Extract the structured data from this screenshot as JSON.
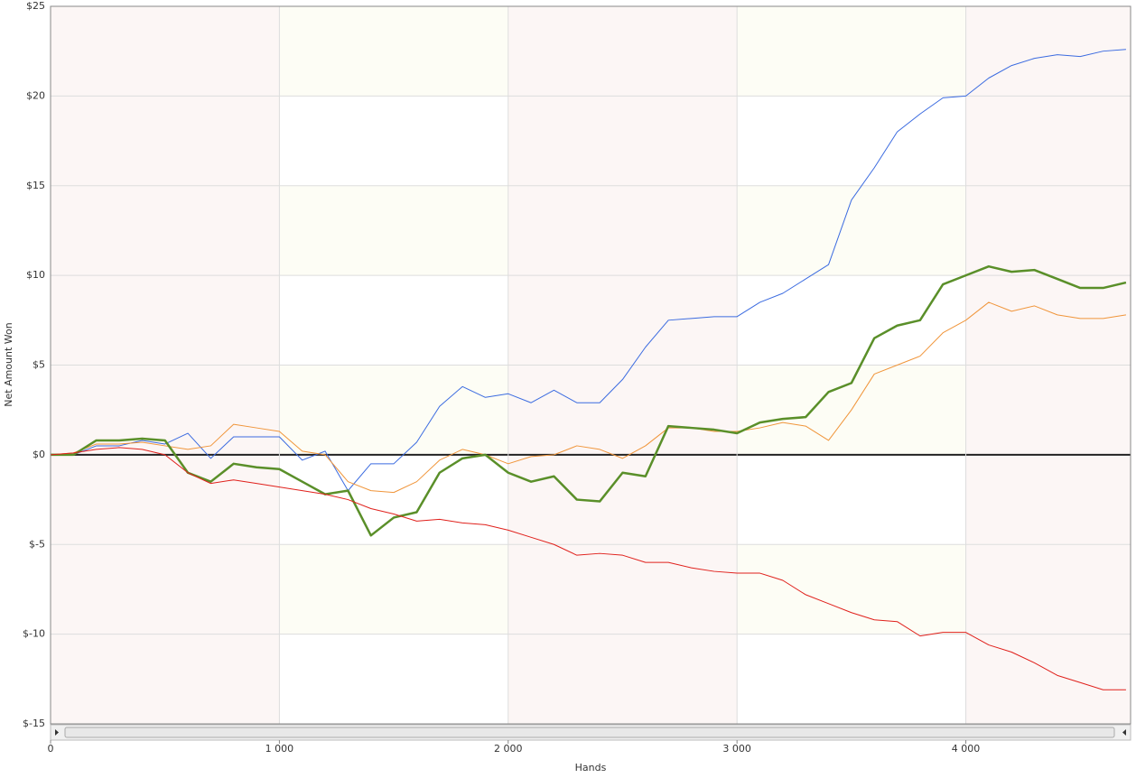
{
  "chart_data": {
    "type": "line",
    "xlabel": "Hands",
    "ylabel": "Net Amount Won",
    "x": [
      0,
      100,
      200,
      300,
      400,
      500,
      600,
      700,
      800,
      900,
      1000,
      1100,
      1200,
      1300,
      1400,
      1500,
      1600,
      1700,
      1800,
      1900,
      2000,
      2100,
      2200,
      2300,
      2400,
      2500,
      2600,
      2700,
      2800,
      2900,
      3000,
      3100,
      3200,
      3300,
      3400,
      3500,
      3600,
      3700,
      3800,
      3900,
      4000,
      4100,
      4200,
      4300,
      4400,
      4500,
      4600,
      4700
    ],
    "series": [
      {
        "color": "#3b6be0",
        "width": 1,
        "values": [
          0,
          0,
          0.5,
          0.5,
          0.8,
          0.6,
          1.2,
          -0.2,
          1.0,
          1.0,
          1.0,
          -0.3,
          0.2,
          -2.0,
          -0.5,
          -0.5,
          0.7,
          2.7,
          3.8,
          3.2,
          3.4,
          2.9,
          3.6,
          2.9,
          2.9,
          4.2,
          6.0,
          7.5,
          7.6,
          7.7,
          7.7,
          8.5,
          9.0,
          9.8,
          10.6,
          14.2,
          16.0,
          18.0,
          19.0,
          19.9,
          20.0,
          21.0,
          21.7,
          22.1,
          22.3,
          22.2,
          22.5,
          22.6
        ]
      },
      {
        "color": "#f0953a",
        "width": 1,
        "values": [
          0,
          0.1,
          0.6,
          0.6,
          0.7,
          0.5,
          0.3,
          0.5,
          1.7,
          1.5,
          1.3,
          0.2,
          0,
          -1.5,
          -2.0,
          -2.1,
          -1.5,
          -0.3,
          0.3,
          0,
          -0.5,
          -0.1,
          0,
          0.5,
          0.3,
          -0.2,
          0.5,
          1.5,
          1.5,
          1.3,
          1.3,
          1.5,
          1.8,
          1.6,
          0.8,
          2.5,
          4.5,
          5.0,
          5.5,
          6.8,
          7.5,
          8.5,
          8.0,
          8.3,
          7.8,
          7.6,
          7.6,
          7.8
        ]
      },
      {
        "color": "#5a8f29",
        "width": 2.5,
        "values": [
          0,
          0,
          0.8,
          0.8,
          0.9,
          0.8,
          -1.0,
          -1.5,
          -0.5,
          -0.7,
          -0.8,
          -1.5,
          -2.2,
          -2.0,
          -4.5,
          -3.5,
          -3.2,
          -1.0,
          -0.2,
          0,
          -1.0,
          -1.5,
          -1.2,
          -2.5,
          -2.6,
          -1.0,
          -1.2,
          1.6,
          1.5,
          1.4,
          1.2,
          1.8,
          2.0,
          2.1,
          3.5,
          4.0,
          6.5,
          7.2,
          7.5,
          9.5,
          10.0,
          10.5,
          10.2,
          10.3,
          9.8,
          9.3,
          9.3,
          9.6
        ]
      },
      {
        "color": "#e0201b",
        "width": 1,
        "values": [
          0,
          0.1,
          0.3,
          0.4,
          0.3,
          0,
          -1.0,
          -1.6,
          -1.4,
          -1.6,
          -1.8,
          -2.0,
          -2.2,
          -2.5,
          -3.0,
          -3.3,
          -3.7,
          -3.6,
          -3.8,
          -3.9,
          -4.2,
          -4.6,
          -5.0,
          -5.6,
          -5.5,
          -5.6,
          -6.0,
          -6.0,
          -6.3,
          -6.5,
          -6.6,
          -6.6,
          -7.0,
          -7.8,
          -8.3,
          -8.8,
          -9.2,
          -9.3,
          -10.1,
          -9.9,
          -9.9,
          -10.6,
          -11.0,
          -11.6,
          -12.3,
          -12.7,
          -13.1,
          -13.1
        ]
      }
    ],
    "xlim": [
      0,
      4720
    ],
    "ylim": [
      -15,
      25
    ],
    "xticks": [
      0,
      {
        "value": 1000,
        "label": "1 000"
      },
      {
        "value": 2000,
        "label": "2 000"
      },
      {
        "value": 3000,
        "label": "3 000"
      },
      {
        "value": 4000,
        "label": "4 000"
      }
    ],
    "yticks": [
      {
        "value": -15,
        "label": "$-15"
      },
      {
        "value": -10,
        "label": "$-10"
      },
      {
        "value": -5,
        "label": "$-5"
      },
      {
        "value": 0,
        "label": "$0"
      },
      {
        "value": 5,
        "label": "$5"
      },
      {
        "value": 10,
        "label": "$10"
      },
      {
        "value": 15,
        "label": "$15"
      },
      {
        "value": 20,
        "label": "$20"
      },
      {
        "value": 25,
        "label": "$25"
      }
    ],
    "grid": true
  }
}
